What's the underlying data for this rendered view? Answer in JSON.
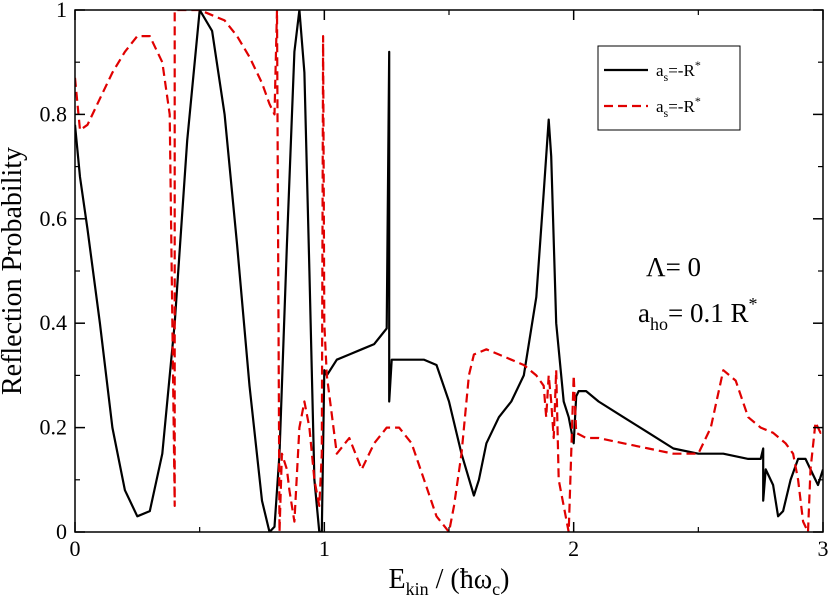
{
  "chart_data": {
    "type": "line",
    "title": "",
    "xlabel_main": "E",
    "xlabel_sub": "kin",
    "xlabel_rest": " / (ħω",
    "xlabel_sub2": "c",
    "xlabel_close": ")",
    "ylabel": "Reflection Probability",
    "xlim": [
      0,
      3
    ],
    "ylim": [
      0,
      1
    ],
    "xticks": [
      0,
      1,
      2,
      3
    ],
    "xtick_labels": [
      "0",
      "1",
      "2",
      "3"
    ],
    "yticks": [
      0,
      0.2,
      0.4,
      0.6,
      0.8,
      1
    ],
    "ytick_labels": [
      "0",
      "0.2",
      "0.4",
      "0.6",
      "0.8",
      "1"
    ],
    "grid": false,
    "legend_position": "top-right",
    "annotations": {
      "lambda_main": "Λ",
      "lambda_rest": "= 0",
      "aho_main": "a",
      "aho_sub": "ho",
      "aho_rest": "= 0.1 R",
      "aho_sup": "*"
    },
    "series": [
      {
        "name_main": "a",
        "name_sub": "s",
        "name_rest": "=-R",
        "name_sup": "*",
        "color": "#000000",
        "dash": "solid",
        "x": [
          0,
          0.02,
          0.05,
          0.1,
          0.15,
          0.2,
          0.25,
          0.3,
          0.35,
          0.4,
          0.45,
          0.5,
          0.55,
          0.6,
          0.65,
          0.7,
          0.75,
          0.78,
          0.8,
          0.82,
          0.85,
          0.88,
          0.9,
          0.92,
          0.94,
          0.96,
          0.98,
          0.99,
          1.0,
          1.01,
          1.05,
          1.1,
          1.15,
          1.2,
          1.25,
          1.26,
          1.26,
          1.27,
          1.3,
          1.35,
          1.4,
          1.45,
          1.5,
          1.55,
          1.6,
          1.62,
          1.65,
          1.7,
          1.75,
          1.8,
          1.85,
          1.88,
          1.9,
          1.91,
          1.93,
          1.96,
          1.98,
          2.0,
          2.01,
          2.02,
          2.05,
          2.1,
          2.2,
          2.3,
          2.4,
          2.5,
          2.6,
          2.7,
          2.75,
          2.76,
          2.76,
          2.77,
          2.8,
          2.82,
          2.84,
          2.87,
          2.9,
          2.93,
          2.96,
          2.98,
          3.0
        ],
        "y": [
          0.78,
          0.68,
          0.58,
          0.4,
          0.2,
          0.08,
          0.03,
          0.04,
          0.15,
          0.4,
          0.75,
          1.0,
          0.96,
          0.8,
          0.55,
          0.28,
          0.06,
          0.0,
          0.01,
          0.15,
          0.55,
          0.92,
          1.0,
          0.88,
          0.5,
          0.1,
          0.0,
          0.0,
          0.31,
          0.3,
          0.33,
          0.34,
          0.35,
          0.36,
          0.39,
          0.92,
          0.25,
          0.33,
          0.33,
          0.33,
          0.33,
          0.32,
          0.25,
          0.15,
          0.07,
          0.1,
          0.17,
          0.22,
          0.25,
          0.3,
          0.45,
          0.65,
          0.79,
          0.72,
          0.4,
          0.25,
          0.22,
          0.17,
          0.26,
          0.27,
          0.27,
          0.25,
          0.22,
          0.19,
          0.16,
          0.15,
          0.15,
          0.14,
          0.14,
          0.16,
          0.06,
          0.12,
          0.09,
          0.03,
          0.04,
          0.1,
          0.14,
          0.14,
          0.11,
          0.09,
          0.12
        ]
      },
      {
        "name_main": "a",
        "name_sub": "s",
        "name_rest": "=-R",
        "name_sup": "*",
        "color": "#e00000",
        "dash": "dashed",
        "x": [
          0,
          0.02,
          0.05,
          0.1,
          0.15,
          0.2,
          0.25,
          0.3,
          0.35,
          0.38,
          0.4,
          0.4,
          0.41,
          0.45,
          0.5,
          0.55,
          0.6,
          0.65,
          0.7,
          0.75,
          0.78,
          0.8,
          0.81,
          0.82,
          0.83,
          0.85,
          0.86,
          0.88,
          0.9,
          0.92,
          0.94,
          0.96,
          0.98,
          0.99,
          0.995,
          1.0,
          1.01,
          1.05,
          1.1,
          1.15,
          1.2,
          1.25,
          1.3,
          1.35,
          1.4,
          1.45,
          1.5,
          1.52,
          1.55,
          1.58,
          1.6,
          1.65,
          1.7,
          1.75,
          1.8,
          1.85,
          1.88,
          1.89,
          1.9,
          1.91,
          1.92,
          1.93,
          1.94,
          1.96,
          1.98,
          1.99,
          2.0,
          2.01,
          2.05,
          2.1,
          2.2,
          2.3,
          2.4,
          2.5,
          2.55,
          2.6,
          2.65,
          2.7,
          2.75,
          2.8,
          2.85,
          2.88,
          2.9,
          2.92,
          2.94,
          2.95,
          2.97,
          2.99,
          3.0
        ],
        "y": [
          0.87,
          0.77,
          0.78,
          0.83,
          0.88,
          0.92,
          0.95,
          0.95,
          0.9,
          0.8,
          0.05,
          1.0,
          1.0,
          1.0,
          1.0,
          0.99,
          0.98,
          0.95,
          0.91,
          0.86,
          0.82,
          0.8,
          1.0,
          0.0,
          0.15,
          0.12,
          0.08,
          0.02,
          0.2,
          0.25,
          0.2,
          0.1,
          0.05,
          0.15,
          0.95,
          0.4,
          0.3,
          0.15,
          0.18,
          0.12,
          0.17,
          0.2,
          0.2,
          0.17,
          0.1,
          0.03,
          0.0,
          0.05,
          0.15,
          0.3,
          0.34,
          0.35,
          0.34,
          0.33,
          0.32,
          0.3,
          0.28,
          0.22,
          0.3,
          0.25,
          0.18,
          0.31,
          0.1,
          0.05,
          0.0,
          0.15,
          0.3,
          0.19,
          0.18,
          0.18,
          0.17,
          0.16,
          0.15,
          0.15,
          0.2,
          0.31,
          0.29,
          0.22,
          0.2,
          0.19,
          0.17,
          0.15,
          0.1,
          0.02,
          0.0,
          0.12,
          0.21,
          0.19,
          0.2
        ]
      }
    ]
  }
}
